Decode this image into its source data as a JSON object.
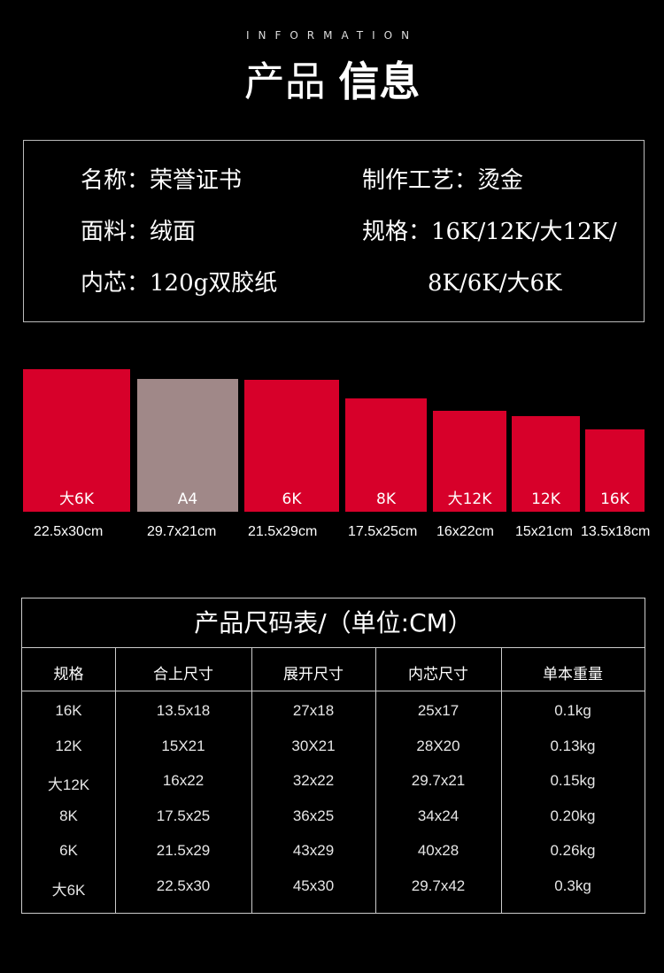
{
  "header": {
    "eyebrow": "INFORMATION",
    "title_thin": "产品",
    "title_bold": "信息"
  },
  "info": {
    "name": "名称：荣誉证书",
    "craft": "制作工艺：烫金",
    "material": "面料：绒面",
    "spec_line1": "规格：16K/12K/大12K/",
    "inner": "内芯：120g双胶纸",
    "spec_line2": "8K/6K/大6K"
  },
  "sizes": [
    {
      "label": "大6K",
      "dim": "22.5x30cm",
      "color": "#d7002a"
    },
    {
      "label": "A4",
      "dim": "29.7x21cm",
      "color": "#a08888"
    },
    {
      "label": "6K",
      "dim": "21.5x29cm",
      "color": "#d7002a"
    },
    {
      "label": "8K",
      "dim": "17.5x25cm",
      "color": "#d7002a"
    },
    {
      "label": "大12K",
      "dim": "16x22cm",
      "color": "#d7002a"
    },
    {
      "label": "12K",
      "dim": "15x21cm",
      "color": "#d7002a"
    },
    {
      "label": "16K",
      "dim": "13.5x18cm",
      "color": "#d7002a"
    }
  ],
  "table": {
    "title": "产品尺码表/（单位:CM）",
    "headers": [
      "规格",
      "合上尺寸",
      "展开尺寸",
      "内芯尺寸",
      "单本重量"
    ],
    "rows": [
      [
        "16K",
        "13.5x18",
        "27x18",
        "25x17",
        "0.1kg"
      ],
      [
        "12K",
        "15X21",
        "30X21",
        "28X20",
        "0.13kg"
      ],
      [
        "大12K",
        "16x22",
        "32x22",
        "29.7x21",
        "0.15kg"
      ],
      [
        "8K",
        "17.5x25",
        "36x25",
        "34x24",
        "0.20kg"
      ],
      [
        "6K",
        "21.5x29",
        "43x29",
        "40x28",
        "0.26kg"
      ],
      [
        "大6K",
        "22.5x30",
        "45x30",
        "29.7x42",
        "0.3kg"
      ]
    ]
  }
}
